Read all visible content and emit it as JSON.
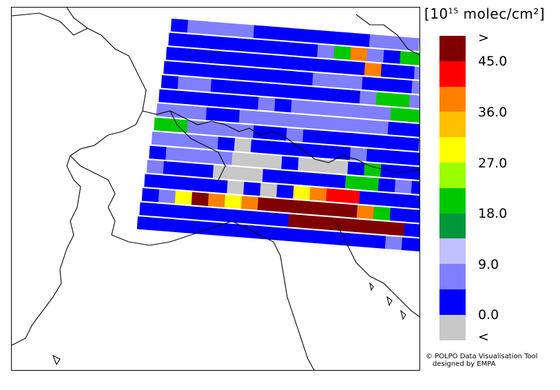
{
  "legend": {
    "unit_prefix": "[10",
    "unit_exp": "15",
    "unit_suffix": " molec/cm²]",
    "labels": [
      ">",
      "45.0",
      "36.0",
      "27.0",
      "18.0",
      "9.0",
      "0.0",
      "<"
    ],
    "colors_top_to_bottom": [
      "#800000",
      "#ff0000",
      "#ff8000",
      "#ffc000",
      "#ffff00",
      "#9aff00",
      "#00c800",
      "#00963c",
      "#c0c0ff",
      "#8080ff",
      "#0000ff",
      "#c8c8c8"
    ]
  },
  "credit": {
    "line1": "© POLPO Data Visualisation Tool",
    "line2": "designed by EMPA"
  },
  "scan_rows": [
    "LMMMMLLLLLLLMMMHYNLMMLPM",
    "LLLLLLLLLMGOMLGGMROMLMRL",
    "LLLLLLLLLLLLOLLMMMLGMMOL",
    "LLLLLLLLLMMMLLLMMGKKKMRM",
    "LMMLLLLLLLLLMGGMHHGMLMLL",
    "LLLLLLMLMMMMMMGGLLMMLMMM",
    "MMMLLMMMMMMMMMLLLLLLLLLL",
    "GGMMMMLLMLLLLLLLMLLLLLLL",
    "MMMMLKLLLLLLMLLLLLLLLLLL",
    "LMMMMKKKLKKKLGLLLLLLGLLL",
    "MLLLKKKLLLLLGGLMLLLMMLGM",
    "LLLLLKLKLHORRLLLLLLLLLLL",
    "LMHZOHOZZZZZZOGLLLLLLLLL",
    "LLLLLLLLLZZZZZZZLLLLKLLL",
    "LLLLLLLLLLLLLLLMLLLLLLLL"
  ],
  "scan_color_key": {
    "Z": "#800000",
    "R": "#ff0000",
    "O": "#ff8000",
    "Y": "#ffc000",
    "H": "#ffff00",
    "N": "#9aff00",
    "G": "#00c800",
    "D": "#00963c",
    "P": "#c0c0ff",
    "M": "#8080ff",
    "L": "#0000ff",
    "K": "#c8c8c8"
  }
}
